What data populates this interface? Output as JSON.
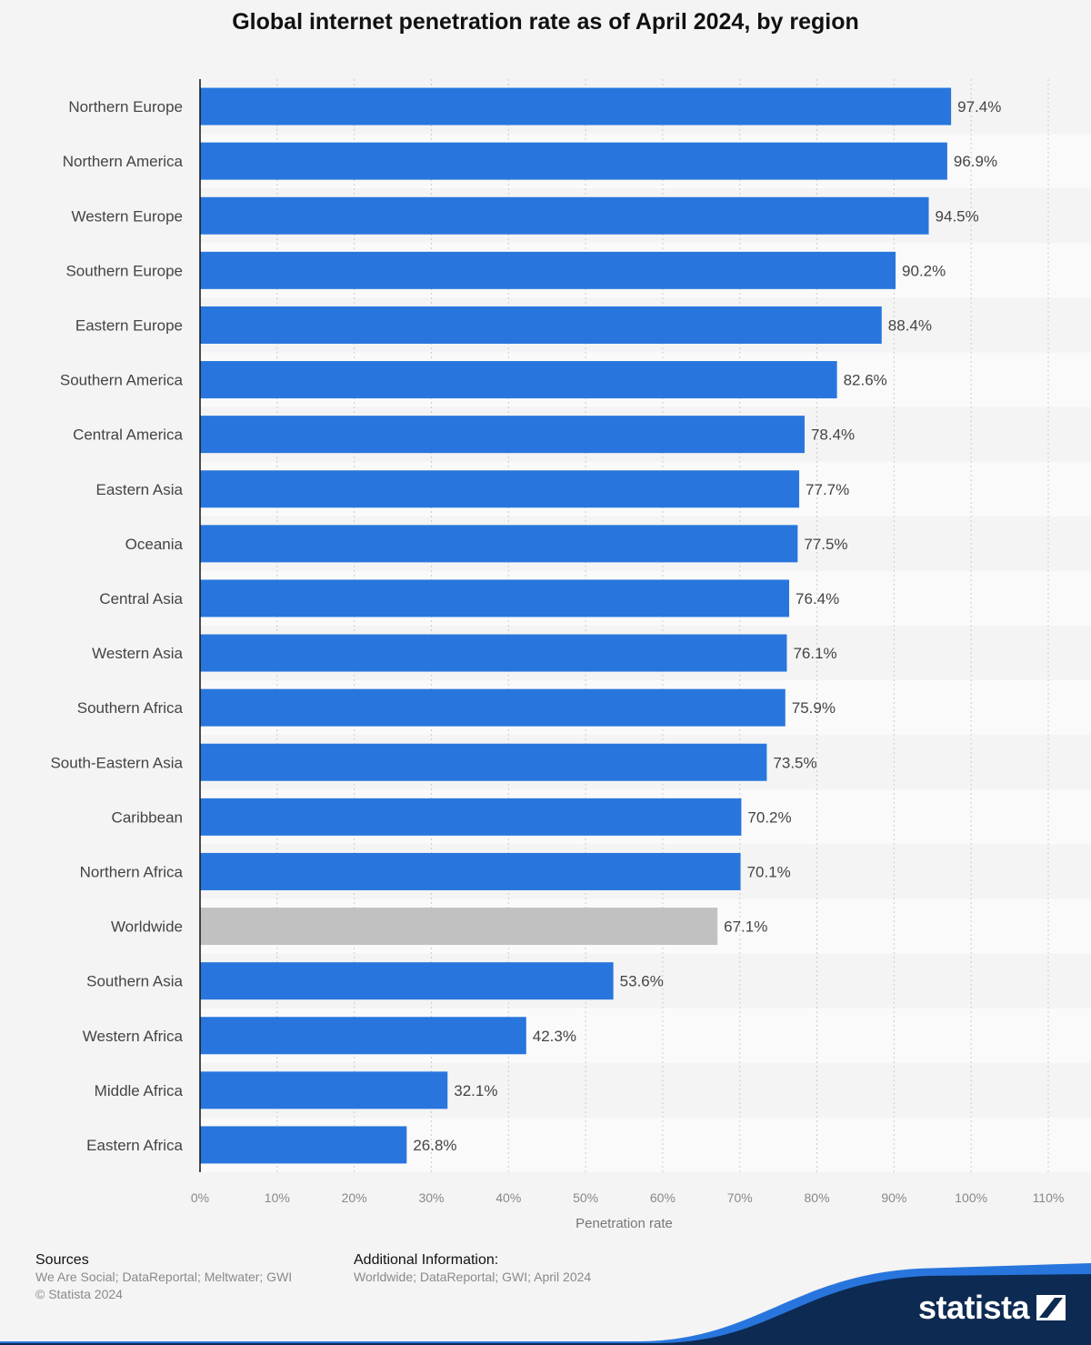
{
  "chart_data": {
    "type": "bar",
    "orientation": "horizontal",
    "title": "Global internet penetration rate as of April 2024, by region",
    "xlabel": "Penetration rate",
    "categories": [
      "Northern Europe",
      "Northern America",
      "Western Europe",
      "Southern Europe",
      "Eastern Europe",
      "Southern America",
      "Central America",
      "Eastern Asia",
      "Oceania",
      "Central Asia",
      "Western Asia",
      "Southern Africa",
      "South-Eastern Asia",
      "Caribbean",
      "Northern Africa",
      "Worldwide",
      "Southern Asia",
      "Western Africa",
      "Middle Africa",
      "Eastern Africa"
    ],
    "values": [
      97.4,
      96.9,
      94.5,
      90.2,
      88.4,
      82.6,
      78.4,
      77.7,
      77.5,
      76.4,
      76.1,
      75.9,
      73.5,
      70.2,
      70.1,
      67.1,
      53.6,
      42.3,
      32.1,
      26.8
    ],
    "value_labels": [
      "97.4%",
      "96.9%",
      "94.5%",
      "90.2%",
      "88.4%",
      "82.6%",
      "78.4%",
      "77.7%",
      "77.5%",
      "76.4%",
      "76.1%",
      "75.9%",
      "73.5%",
      "70.2%",
      "70.1%",
      "67.1%",
      "53.6%",
      "42.3%",
      "32.1%",
      "26.8%"
    ],
    "xlim": [
      0,
      110
    ],
    "ticks": [
      0,
      10,
      20,
      30,
      40,
      50,
      60,
      70,
      80,
      90,
      100,
      110
    ],
    "tick_labels": [
      "0%",
      "10%",
      "20%",
      "30%",
      "40%",
      "50%",
      "60%",
      "70%",
      "80%",
      "90%",
      "100%",
      "110%"
    ],
    "grid": true,
    "highlight_category": "Worldwide",
    "colors": {
      "bar": "#2876dd",
      "highlight": "#c1c1c1",
      "band": "#fafafa",
      "grid": "#cccccc"
    }
  },
  "footer": {
    "sources_heading": "Sources",
    "sources_text": "We Are Social; DataReportal; Meltwater; GWI",
    "copyright": "© Statista 2024",
    "additional_heading": "Additional Information:",
    "additional_text": "Worldwide; DataReportal; GWI; April 2024"
  },
  "brand": {
    "name": "statista",
    "icon": "statista-logo-icon",
    "colors": {
      "wave": "#0d2a52",
      "accent": "#2876dd"
    }
  }
}
